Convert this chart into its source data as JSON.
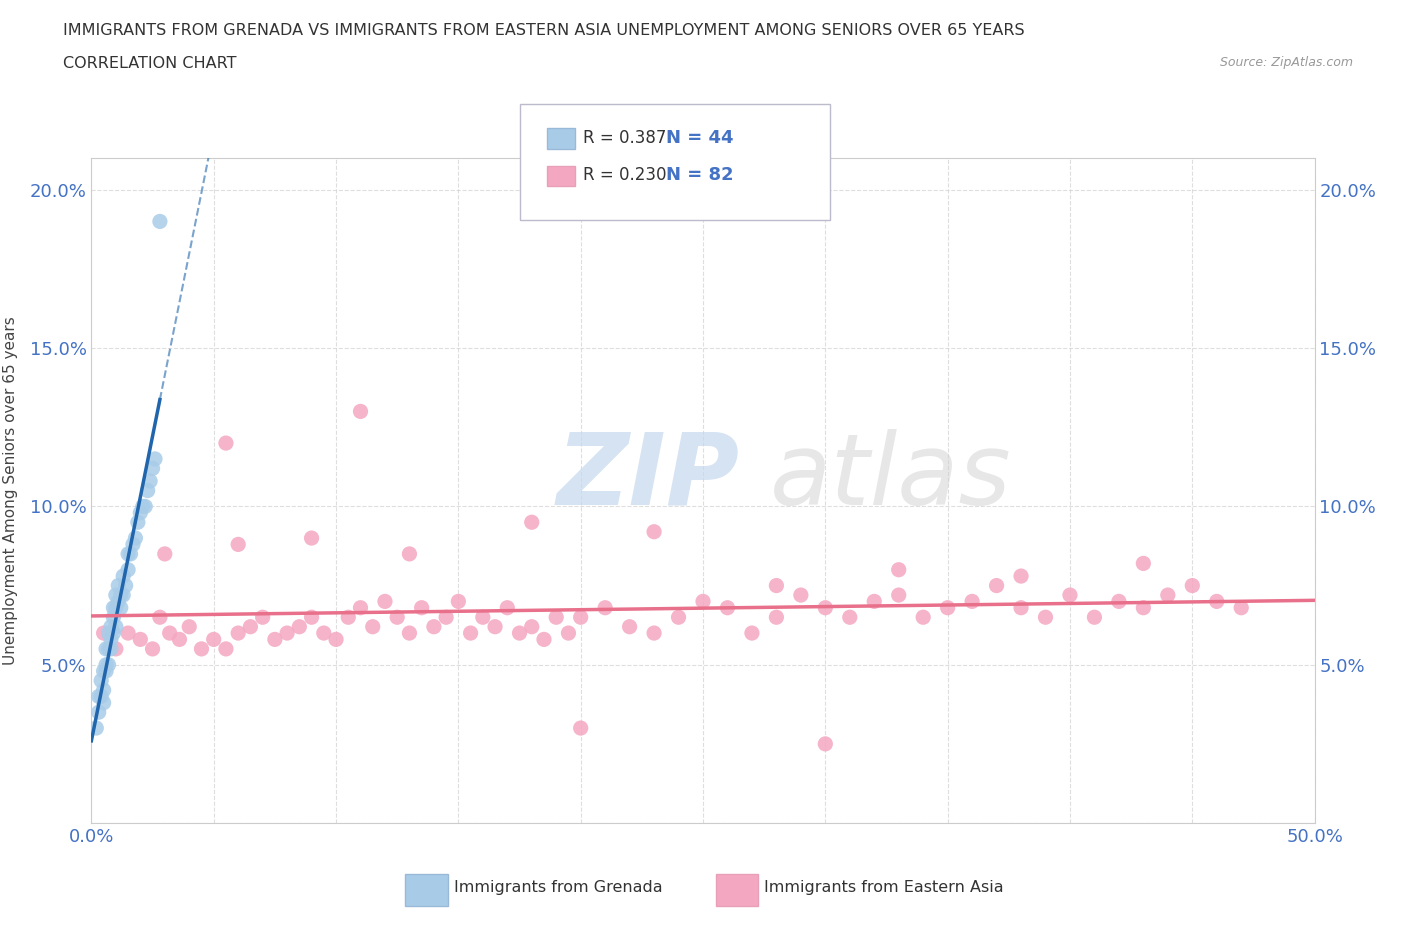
{
  "title_line1": "IMMIGRANTS FROM GRENADA VS IMMIGRANTS FROM EASTERN ASIA UNEMPLOYMENT AMONG SENIORS OVER 65 YEARS",
  "title_line2": "CORRELATION CHART",
  "source_text": "Source: ZipAtlas.com",
  "ylabel": "Unemployment Among Seniors over 65 years",
  "xlim": [
    0.0,
    0.5
  ],
  "ylim": [
    0.0,
    0.21
  ],
  "grenada_R": 0.387,
  "grenada_N": 44,
  "eastern_asia_R": 0.23,
  "eastern_asia_N": 82,
  "grenada_color": "#a8cce8",
  "eastern_asia_color": "#f4a7c0",
  "grenada_trend_color": "#2166ac",
  "eastern_asia_trend_color": "#e8708a",
  "grenada_x": [
    0.002,
    0.003,
    0.003,
    0.004,
    0.004,
    0.005,
    0.005,
    0.005,
    0.006,
    0.006,
    0.006,
    0.007,
    0.007,
    0.007,
    0.008,
    0.008,
    0.008,
    0.009,
    0.009,
    0.009,
    0.01,
    0.01,
    0.01,
    0.011,
    0.011,
    0.012,
    0.012,
    0.013,
    0.013,
    0.014,
    0.015,
    0.015,
    0.016,
    0.017,
    0.018,
    0.019,
    0.02,
    0.021,
    0.022,
    0.023,
    0.024,
    0.025,
    0.026,
    0.028
  ],
  "grenada_y": [
    0.03,
    0.035,
    0.04,
    0.04,
    0.045,
    0.038,
    0.042,
    0.048,
    0.048,
    0.05,
    0.055,
    0.05,
    0.055,
    0.06,
    0.055,
    0.058,
    0.062,
    0.06,
    0.065,
    0.068,
    0.062,
    0.068,
    0.072,
    0.07,
    0.075,
    0.068,
    0.072,
    0.072,
    0.078,
    0.075,
    0.08,
    0.085,
    0.085,
    0.088,
    0.09,
    0.095,
    0.098,
    0.1,
    0.1,
    0.105,
    0.108,
    0.112,
    0.115,
    0.19
  ],
  "eastern_asia_x": [
    0.005,
    0.01,
    0.015,
    0.02,
    0.025,
    0.028,
    0.032,
    0.036,
    0.04,
    0.045,
    0.05,
    0.055,
    0.06,
    0.065,
    0.07,
    0.075,
    0.08,
    0.085,
    0.09,
    0.095,
    0.1,
    0.105,
    0.11,
    0.115,
    0.12,
    0.125,
    0.13,
    0.135,
    0.14,
    0.145,
    0.15,
    0.155,
    0.16,
    0.165,
    0.17,
    0.175,
    0.18,
    0.185,
    0.19,
    0.195,
    0.2,
    0.21,
    0.22,
    0.23,
    0.24,
    0.25,
    0.26,
    0.27,
    0.28,
    0.29,
    0.3,
    0.31,
    0.32,
    0.33,
    0.34,
    0.35,
    0.36,
    0.37,
    0.38,
    0.39,
    0.4,
    0.41,
    0.42,
    0.43,
    0.44,
    0.45,
    0.46,
    0.47,
    0.03,
    0.06,
    0.09,
    0.13,
    0.18,
    0.23,
    0.28,
    0.33,
    0.38,
    0.43,
    0.055,
    0.11,
    0.2,
    0.3
  ],
  "eastern_asia_y": [
    0.06,
    0.055,
    0.06,
    0.058,
    0.055,
    0.065,
    0.06,
    0.058,
    0.062,
    0.055,
    0.058,
    0.055,
    0.06,
    0.062,
    0.065,
    0.058,
    0.06,
    0.062,
    0.065,
    0.06,
    0.058,
    0.065,
    0.068,
    0.062,
    0.07,
    0.065,
    0.06,
    0.068,
    0.062,
    0.065,
    0.07,
    0.06,
    0.065,
    0.062,
    0.068,
    0.06,
    0.062,
    0.058,
    0.065,
    0.06,
    0.065,
    0.068,
    0.062,
    0.06,
    0.065,
    0.07,
    0.068,
    0.06,
    0.065,
    0.072,
    0.068,
    0.065,
    0.07,
    0.072,
    0.065,
    0.068,
    0.07,
    0.075,
    0.068,
    0.065,
    0.072,
    0.065,
    0.07,
    0.068,
    0.072,
    0.075,
    0.07,
    0.068,
    0.085,
    0.088,
    0.09,
    0.085,
    0.095,
    0.092,
    0.075,
    0.08,
    0.078,
    0.082,
    0.12,
    0.13,
    0.03,
    0.025
  ]
}
